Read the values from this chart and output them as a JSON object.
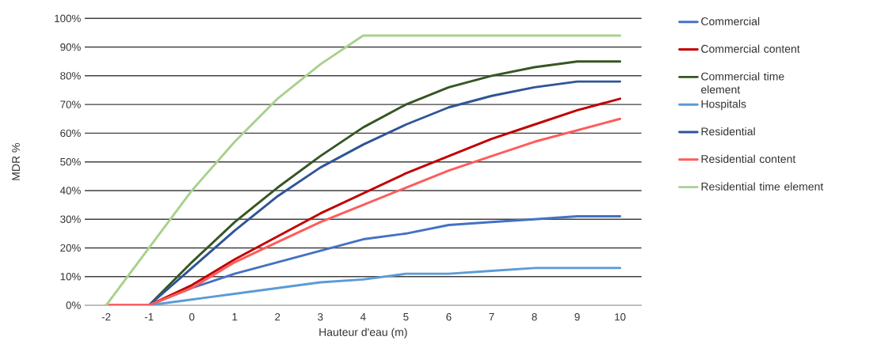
{
  "chart_data": {
    "type": "line",
    "xlabel": "Hauteur d'eau (m)",
    "ylabel": "MDR %",
    "x": [
      -2,
      -1,
      0,
      1,
      2,
      3,
      4,
      5,
      6,
      7,
      8,
      9,
      10
    ],
    "series": [
      {
        "name": "Commercial",
        "color": "#4472c4",
        "values": [
          null,
          0,
          6,
          11,
          15,
          19,
          23,
          25,
          28,
          29,
          30,
          31,
          31
        ]
      },
      {
        "name": "Commercial content",
        "color": "#c00000",
        "values": [
          0,
          0,
          7,
          16,
          24,
          32,
          39,
          46,
          52,
          58,
          63,
          68,
          72
        ]
      },
      {
        "name": "Commercial time element",
        "color": "#375623",
        "values": [
          null,
          0,
          15,
          29,
          41,
          52,
          62,
          70,
          76,
          80,
          83,
          85,
          85
        ]
      },
      {
        "name": "Hospitals",
        "color": "#5b9bd5",
        "values": [
          null,
          0,
          2,
          4,
          6,
          8,
          9,
          11,
          11,
          12,
          13,
          13,
          13
        ]
      },
      {
        "name": "Residential",
        "color": "#2f5597",
        "values": [
          null,
          0,
          13,
          26,
          38,
          48,
          56,
          63,
          69,
          73,
          76,
          78,
          78
        ]
      },
      {
        "name": "Residential content",
        "color": "#ff5b5b",
        "values": [
          0,
          0,
          6,
          15,
          22,
          29,
          35,
          41,
          47,
          52,
          57,
          61,
          65
        ]
      },
      {
        "name": "Residential time element",
        "color": "#a9d18e",
        "values": [
          0,
          20,
          40,
          57,
          72,
          84,
          94,
          94,
          94,
          94,
          94,
          94,
          94
        ]
      }
    ],
    "xlim": [
      -2.5,
      10.5
    ],
    "xticks": [
      -2,
      -1,
      0,
      1,
      2,
      3,
      4,
      5,
      6,
      7,
      8,
      9,
      10
    ],
    "ylim": [
      0,
      100
    ],
    "yticks": [
      {
        "value": 0,
        "label": "0%"
      },
      {
        "value": 10,
        "label": "10%"
      },
      {
        "value": 20,
        "label": "20%"
      },
      {
        "value": 30,
        "label": "30%"
      },
      {
        "value": 40,
        "label": "40%"
      },
      {
        "value": 50,
        "label": "50%"
      },
      {
        "value": 60,
        "label": "60%"
      },
      {
        "value": 70,
        "label": "70%"
      },
      {
        "value": 80,
        "label": "80%"
      },
      {
        "value": 90,
        "label": "90%"
      },
      {
        "value": 100,
        "label": "100%"
      }
    ],
    "grid": "y",
    "legend": "right"
  }
}
